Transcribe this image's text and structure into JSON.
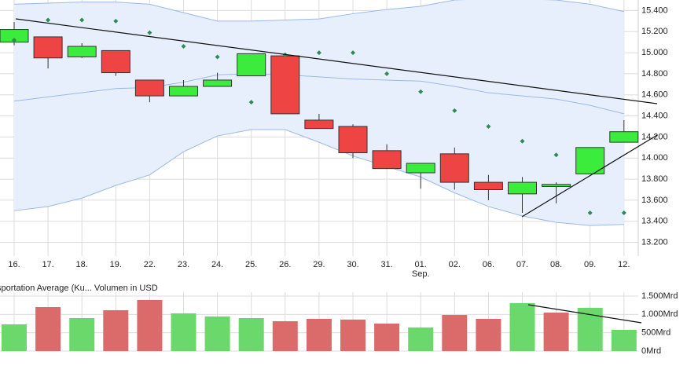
{
  "chart_data": [
    {
      "type": "candlestick",
      "categories": [
        "16.",
        "17.",
        "18.",
        "19.",
        "22.",
        "23.",
        "24.",
        "25.",
        "26.",
        "29.",
        "30.",
        "31.",
        "01.",
        "02.",
        "06.",
        "07.",
        "08.",
        "09.",
        "12."
      ],
      "month_labels": [
        null,
        null,
        null,
        null,
        null,
        null,
        null,
        null,
        null,
        null,
        null,
        null,
        "Sep.",
        null,
        null,
        null,
        null,
        null,
        null
      ],
      "open": [
        15.1,
        15.15,
        14.96,
        15.02,
        14.74,
        14.59,
        14.68,
        14.78,
        14.97,
        14.36,
        14.3,
        14.07,
        13.86,
        14.04,
        13.77,
        13.66,
        13.73,
        13.85,
        14.15
      ],
      "high": [
        15.29,
        15.15,
        15.09,
        15.02,
        14.74,
        14.74,
        14.81,
        14.99,
        14.99,
        14.42,
        14.32,
        14.13,
        13.95,
        14.1,
        13.84,
        13.82,
        13.77,
        14.1,
        14.36
      ],
      "low": [
        15.07,
        14.85,
        14.95,
        14.78,
        14.53,
        14.59,
        14.68,
        14.78,
        14.42,
        14.28,
        14.0,
        13.9,
        13.71,
        13.7,
        13.6,
        13.48,
        13.57,
        13.85,
        14.15
      ],
      "close": [
        15.22,
        14.95,
        15.06,
        14.81,
        14.59,
        14.68,
        14.74,
        14.99,
        14.42,
        14.28,
        14.05,
        13.9,
        13.95,
        13.77,
        13.7,
        13.77,
        13.75,
        14.1,
        14.25
      ],
      "up_color": "#3cec3c",
      "down_color": "#ef4444",
      "sar": {
        "color": "#2e8b57",
        "values": [
          15.12,
          15.31,
          15.31,
          15.3,
          15.19,
          15.06,
          14.96,
          14.53,
          14.98,
          15.0,
          15.0,
          14.8,
          14.63,
          14.45,
          14.3,
          14.16,
          14.03,
          13.48,
          13.48
        ]
      },
      "bands": {
        "color": "#9ab8e8",
        "fill": "#e8effc",
        "upper": [
          15.46,
          15.47,
          15.48,
          15.48,
          15.46,
          15.38,
          15.3,
          15.3,
          15.31,
          15.32,
          15.37,
          15.41,
          15.44,
          15.5,
          15.51,
          15.51,
          15.5,
          15.46,
          15.39
        ],
        "middle": [
          14.54,
          14.58,
          14.62,
          14.66,
          14.67,
          14.72,
          14.79,
          14.8,
          14.79,
          14.77,
          14.75,
          14.74,
          14.73,
          14.68,
          14.62,
          14.59,
          14.56,
          14.5,
          14.42
        ],
        "lower": [
          13.5,
          13.54,
          13.62,
          13.74,
          13.84,
          14.06,
          14.21,
          14.27,
          14.27,
          14.15,
          14.02,
          13.92,
          13.82,
          13.67,
          13.54,
          13.45,
          13.39,
          13.36,
          13.37
        ]
      },
      "ylim": [
        13.07,
        15.5
      ],
      "yticks": [
        {
          "value": 13.2,
          "label": "13.200"
        },
        {
          "value": 13.4,
          "label": "13.400"
        },
        {
          "value": 13.6,
          "label": "13.600"
        },
        {
          "value": 13.8,
          "label": "13.800"
        },
        {
          "value": 14.0,
          "label": "14.000"
        },
        {
          "value": 14.2,
          "label": "14.200"
        },
        {
          "value": 14.4,
          "label": "14.400"
        },
        {
          "value": 14.6,
          "label": "14.600"
        },
        {
          "value": 14.8,
          "label": "14.800"
        },
        {
          "value": 15.0,
          "label": "15.000"
        },
        {
          "value": 15.2,
          "label": "15.200"
        },
        {
          "value": 15.4,
          "label": "15.400"
        }
      ],
      "grid": true
    },
    {
      "type": "bar",
      "title": "sportation Average (Ku... Volumen in USD",
      "values": [
        730,
        1200,
        900,
        1115,
        1395,
        1030,
        945,
        900,
        815,
        880,
        860,
        750,
        645,
        985,
        880,
        1310,
        1050,
        1180,
        580
      ],
      "colors": [
        "#6ad86a",
        "#db6a6a",
        "#6ad86a",
        "#db6a6a",
        "#db6a6a",
        "#6ad86a",
        "#6ad86a",
        "#6ad86a",
        "#db6a6a",
        "#db6a6a",
        "#db6a6a",
        "#db6a6a",
        "#6ad86a",
        "#db6a6a",
        "#db6a6a",
        "#6ad86a",
        "#db6a6a",
        "#6ad86a",
        "#6ad86a"
      ],
      "ylim": [
        0,
        1500
      ],
      "yticks": [
        {
          "value": 0,
          "label": "0Mrd"
        },
        {
          "value": 500,
          "label": "500Mrd"
        },
        {
          "value": 1000,
          "label": "1.000Mrd"
        },
        {
          "value": 1500,
          "label": "1.500Mrd"
        }
      ],
      "grid": true
    }
  ]
}
